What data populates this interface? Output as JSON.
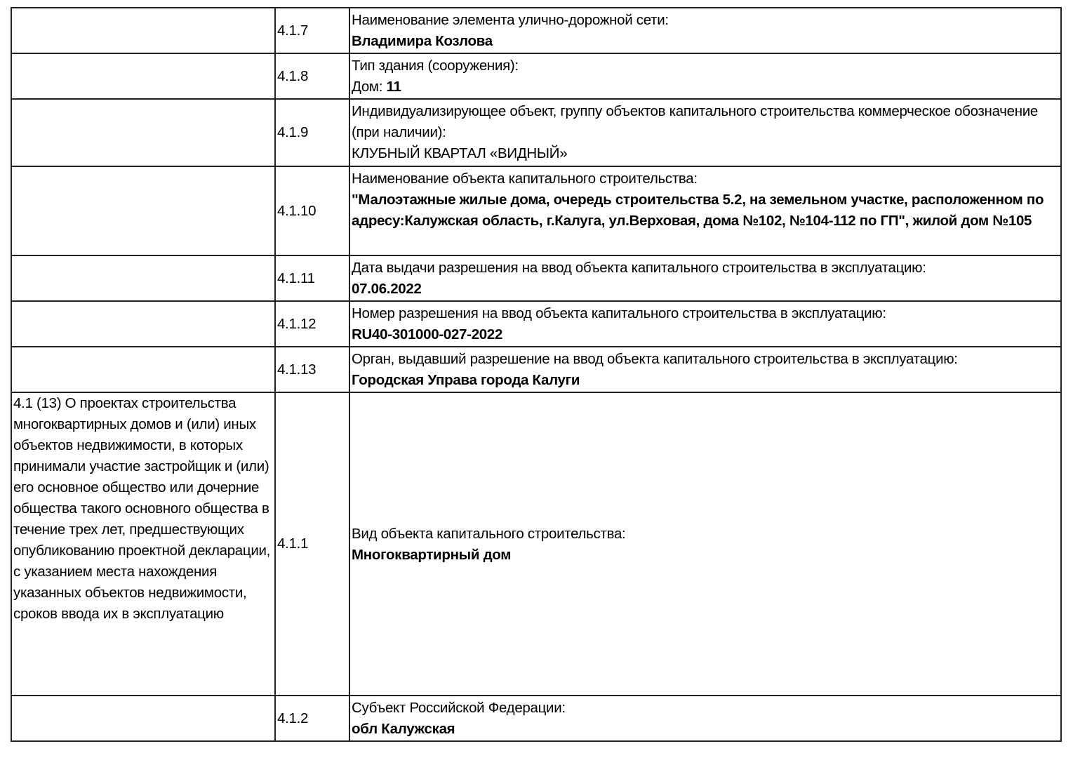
{
  "rows": [
    {
      "num": "4.1.7",
      "label": "Наименование элемента улично-дорожной сети:",
      "value": "Владимира Козлова"
    },
    {
      "num": "4.1.8",
      "label": "Тип здания (сооружения):",
      "value_prefix": "Дом: ",
      "value": "11"
    },
    {
      "num": "4.1.9",
      "label": "Индивидуализирующее объект, группу объектов капитального строительства коммерческое обозначение (при наличии):",
      "value": "КЛУБНЫЙ КВАРТАЛ «ВИДНЫЙ»"
    },
    {
      "num": "4.1.10",
      "label": "Наименование объекта капитального строительства:",
      "value": "\"Малоэтажные жилые дома, очередь строительства 5.2, на земельном участке, расположенном по адресу:Калужская область, г.Калуга, ул.Верховая, дома №102, №104-112 по ГП\", жилой дом №105"
    },
    {
      "num": "4.1.11",
      "label": "Дата выдачи разрешения на ввод объекта капитального строительства в эксплуатацию:",
      "value": "07.06.2022"
    },
    {
      "num": "4.1.12",
      "label": "Номер разрешения на ввод объекта капитального строительства в эксплуатацию:",
      "value": "RU40-301000-027-2022"
    },
    {
      "num": "4.1.13",
      "label": "Орган, выдавший разрешение на ввод объекта капитального строительства в эксплуатацию:",
      "value": "Городская Управа города Калуги"
    },
    {
      "section": "4.1 (13) О проектах строительства многоквартирных домов и (или) иных объектов недвижимости, в которых принимали участие застройщик и (или) его основное общество или дочерние общества такого основного общества в течение трех лет, предшествующих опубликованию проектной декларации, с указанием места нахождения указанных объектов недвижимости, сроков ввода их в эксплуатацию",
      "num": "4.1.1",
      "label": "Вид объекта капитального строительства:",
      "value": "Многоквартирный дом"
    },
    {
      "num": "4.1.2",
      "label": "Субъект Российской Федерации:",
      "value": "обл Калужская"
    }
  ]
}
